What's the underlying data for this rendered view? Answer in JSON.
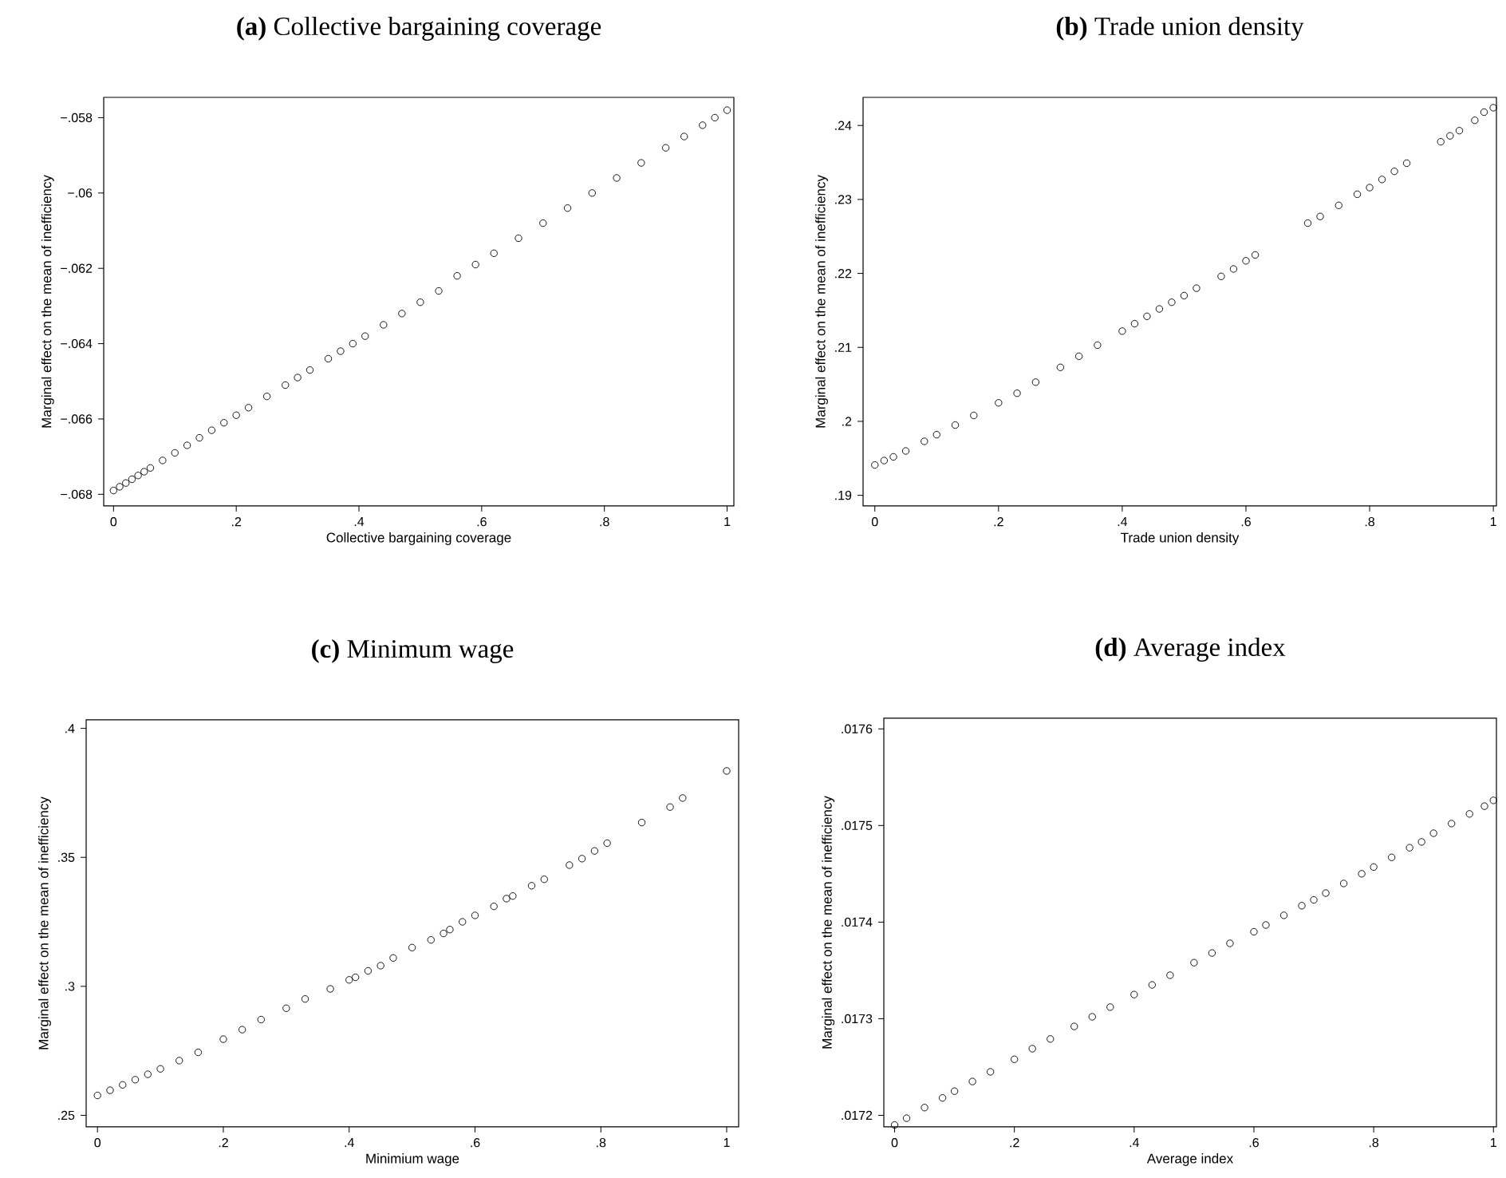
{
  "chart_data": [
    {
      "type": "scatter",
      "title": "**(a)** Collective bargaining coverage",
      "xlabel": "Collective bargaining coverage",
      "ylabel": "Marginal effect on the mean of inefficiency",
      "color": "#000000",
      "marker": "circle",
      "xlim": [
        -0.016,
        1.011
      ],
      "ylim": [
        -0.06831,
        -0.05746
      ],
      "xticks": [
        0,
        {
          "value": 0.2,
          "label": ".2"
        },
        {
          "value": 0.4,
          "label": ".4"
        },
        {
          "value": 0.6,
          "label": ".6"
        },
        {
          "value": 0.8,
          "label": ".8"
        },
        1
      ],
      "yticks": [
        {
          "value": -0.068,
          "label": "−.068"
        },
        {
          "value": -0.066,
          "label": "−.066"
        },
        {
          "value": -0.064,
          "label": "−.064"
        },
        {
          "value": -0.062,
          "label": "−.062"
        },
        {
          "value": -0.06,
          "label": "−.06"
        },
        {
          "value": -0.058,
          "label": "−.058"
        }
      ],
      "x": [
        0,
        0.01,
        0.02,
        0.03,
        0.04,
        0.05,
        0.06,
        0.08,
        0.1,
        0.12,
        0.14,
        0.16,
        0.18,
        0.2,
        0.22,
        0.25,
        0.28,
        0.3,
        0.32,
        0.35,
        0.37,
        0.39,
        0.41,
        0.44,
        0.47,
        0.5,
        0.53,
        0.56,
        0.59,
        0.62,
        0.66,
        0.7,
        0.74,
        0.78,
        0.82,
        0.86,
        0.9,
        0.93,
        0.96,
        0.98,
        1
      ],
      "values": [
        -0.0679,
        -0.0678,
        -0.0677,
        -0.0676,
        -0.0675,
        -0.0674,
        -0.0673,
        -0.0671,
        -0.0669,
        -0.0667,
        -0.0665,
        -0.0663,
        -0.0661,
        -0.0659,
        -0.0657,
        -0.0654,
        -0.0651,
        -0.0649,
        -0.0647,
        -0.0644,
        -0.0642,
        -0.064,
        -0.0638,
        -0.0635,
        -0.0632,
        -0.0629,
        -0.0626,
        -0.0622,
        -0.0619,
        -0.0616,
        -0.0612,
        -0.0608,
        -0.0604,
        -0.06,
        -0.0596,
        -0.0592,
        -0.0588,
        -0.0585,
        -0.0582,
        -0.058,
        -0.0578
      ]
    },
    {
      "type": "scatter",
      "title": "**(b)** Trade union density",
      "xlabel": "Trade union density",
      "ylabel": "Marginal effect on the mean of inefficiency",
      "color": "#000000",
      "marker": "circle",
      "xlim": [
        -0.019,
        1.005
      ],
      "ylim": [
        0.18856,
        0.2438
      ],
      "xticks": [
        0,
        {
          "value": 0.2,
          "label": ".2"
        },
        {
          "value": 0.4,
          "label": ".4"
        },
        {
          "value": 0.6,
          "label": ".6"
        },
        {
          "value": 0.8,
          "label": ".8"
        },
        1
      ],
      "yticks": [
        {
          "value": 0.19,
          "label": ".19"
        },
        {
          "value": 0.2,
          "label": ".2"
        },
        {
          "value": 0.21,
          "label": ".21"
        },
        {
          "value": 0.22,
          "label": ".22"
        },
        {
          "value": 0.23,
          "label": ".23"
        },
        {
          "value": 0.24,
          "label": ".24"
        }
      ],
      "x": [
        0,
        0.015,
        0.03,
        0.05,
        0.08,
        0.1,
        0.13,
        0.16,
        0.2,
        0.23,
        0.26,
        0.3,
        0.33,
        0.36,
        0.4,
        0.42,
        0.44,
        0.46,
        0.48,
        0.5,
        0.52,
        0.56,
        0.58,
        0.6,
        0.615,
        0.7,
        0.72,
        0.75,
        0.78,
        0.8,
        0.82,
        0.84,
        0.86,
        0.915,
        0.93,
        0.945,
        0.97,
        0.985,
        1
      ],
      "values": [
        0.1941,
        0.1947,
        0.1952,
        0.196,
        0.1973,
        0.1982,
        0.1995,
        0.2008,
        0.2025,
        0.2038,
        0.2053,
        0.2073,
        0.2088,
        0.2103,
        0.2122,
        0.2132,
        0.2142,
        0.2152,
        0.2161,
        0.217,
        0.218,
        0.2196,
        0.2206,
        0.2217,
        0.2225,
        0.2268,
        0.2277,
        0.2292,
        0.2307,
        0.2316,
        0.2327,
        0.2338,
        0.2349,
        0.2378,
        0.2386,
        0.2393,
        0.2407,
        0.2418,
        0.2424
      ]
    },
    {
      "type": "scatter",
      "title": "**(c)** Minimum wage",
      "xlabel": "Minimium wage",
      "ylabel": "Marginal effect on the mean of inefficiency",
      "color": "#000000",
      "marker": "circle",
      "xlim": [
        -0.018,
        1.019
      ],
      "ylim": [
        0.2455,
        0.4033
      ],
      "xticks": [
        0,
        {
          "value": 0.2,
          "label": ".2"
        },
        {
          "value": 0.4,
          "label": ".4"
        },
        {
          "value": 0.6,
          "label": ".6"
        },
        {
          "value": 0.8,
          "label": ".8"
        },
        1
      ],
      "yticks": [
        {
          "value": 0.25,
          "label": ".25"
        },
        {
          "value": 0.3,
          "label": ".3"
        },
        {
          "value": 0.35,
          "label": ".35"
        },
        {
          "value": 0.4,
          "label": ".4"
        }
      ],
      "x": [
        0,
        0.02,
        0.04,
        0.06,
        0.08,
        0.1,
        0.13,
        0.16,
        0.2,
        0.23,
        0.26,
        0.3,
        0.33,
        0.37,
        0.4,
        0.41,
        0.43,
        0.45,
        0.47,
        0.5,
        0.53,
        0.55,
        0.56,
        0.58,
        0.6,
        0.63,
        0.65,
        0.66,
        0.69,
        0.71,
        0.75,
        0.77,
        0.79,
        0.81,
        0.865,
        0.91,
        0.93,
        1
      ],
      "values": [
        0.2577,
        0.2597,
        0.2618,
        0.2638,
        0.2659,
        0.268,
        0.2712,
        0.2744,
        0.2795,
        0.2832,
        0.2871,
        0.2915,
        0.2951,
        0.299,
        0.3025,
        0.3035,
        0.306,
        0.308,
        0.311,
        0.315,
        0.318,
        0.3205,
        0.322,
        0.325,
        0.3275,
        0.331,
        0.334,
        0.335,
        0.339,
        0.3415,
        0.347,
        0.3495,
        0.3525,
        0.3555,
        0.3635,
        0.3695,
        0.373,
        0.3835
      ]
    },
    {
      "type": "scatter",
      "title": "**(d)** Average index",
      "xlabel": "Average index",
      "ylabel": "Marginal effect on the mean of inefficiency",
      "color": "#000000",
      "marker": "circle",
      "xlim": [
        -0.018,
        1.005
      ],
      "ylim": [
        0.017188,
        0.017611
      ],
      "xticks": [
        0,
        {
          "value": 0.2,
          "label": ".2"
        },
        {
          "value": 0.4,
          "label": ".4"
        },
        {
          "value": 0.6,
          "label": ".6"
        },
        {
          "value": 0.8,
          "label": ".8"
        },
        1
      ],
      "yticks": [
        {
          "value": 0.0172,
          "label": ".0172"
        },
        {
          "value": 0.0173,
          "label": ".0173"
        },
        {
          "value": 0.0174,
          "label": ".0174"
        },
        {
          "value": 0.0175,
          "label": ".0175"
        },
        {
          "value": 0.0176,
          "label": ".0176"
        }
      ],
      "x": [
        0,
        0.02,
        0.05,
        0.08,
        0.1,
        0.13,
        0.16,
        0.2,
        0.23,
        0.26,
        0.3,
        0.33,
        0.36,
        0.4,
        0.43,
        0.46,
        0.5,
        0.53,
        0.56,
        0.6,
        0.62,
        0.65,
        0.68,
        0.7,
        0.72,
        0.75,
        0.78,
        0.8,
        0.83,
        0.86,
        0.88,
        0.9,
        0.93,
        0.96,
        0.985,
        1
      ],
      "values": [
        0.01719,
        0.017197,
        0.017208,
        0.017218,
        0.017225,
        0.017235,
        0.017245,
        0.017258,
        0.017269,
        0.017279,
        0.017292,
        0.017302,
        0.017312,
        0.017325,
        0.017335,
        0.017345,
        0.017358,
        0.017368,
        0.017378,
        0.01739,
        0.017397,
        0.017407,
        0.017417,
        0.017423,
        0.01743,
        0.01744,
        0.01745,
        0.017457,
        0.017467,
        0.017477,
        0.017483,
        0.017492,
        0.017502,
        0.017512,
        0.01752,
        0.017526
      ]
    }
  ]
}
